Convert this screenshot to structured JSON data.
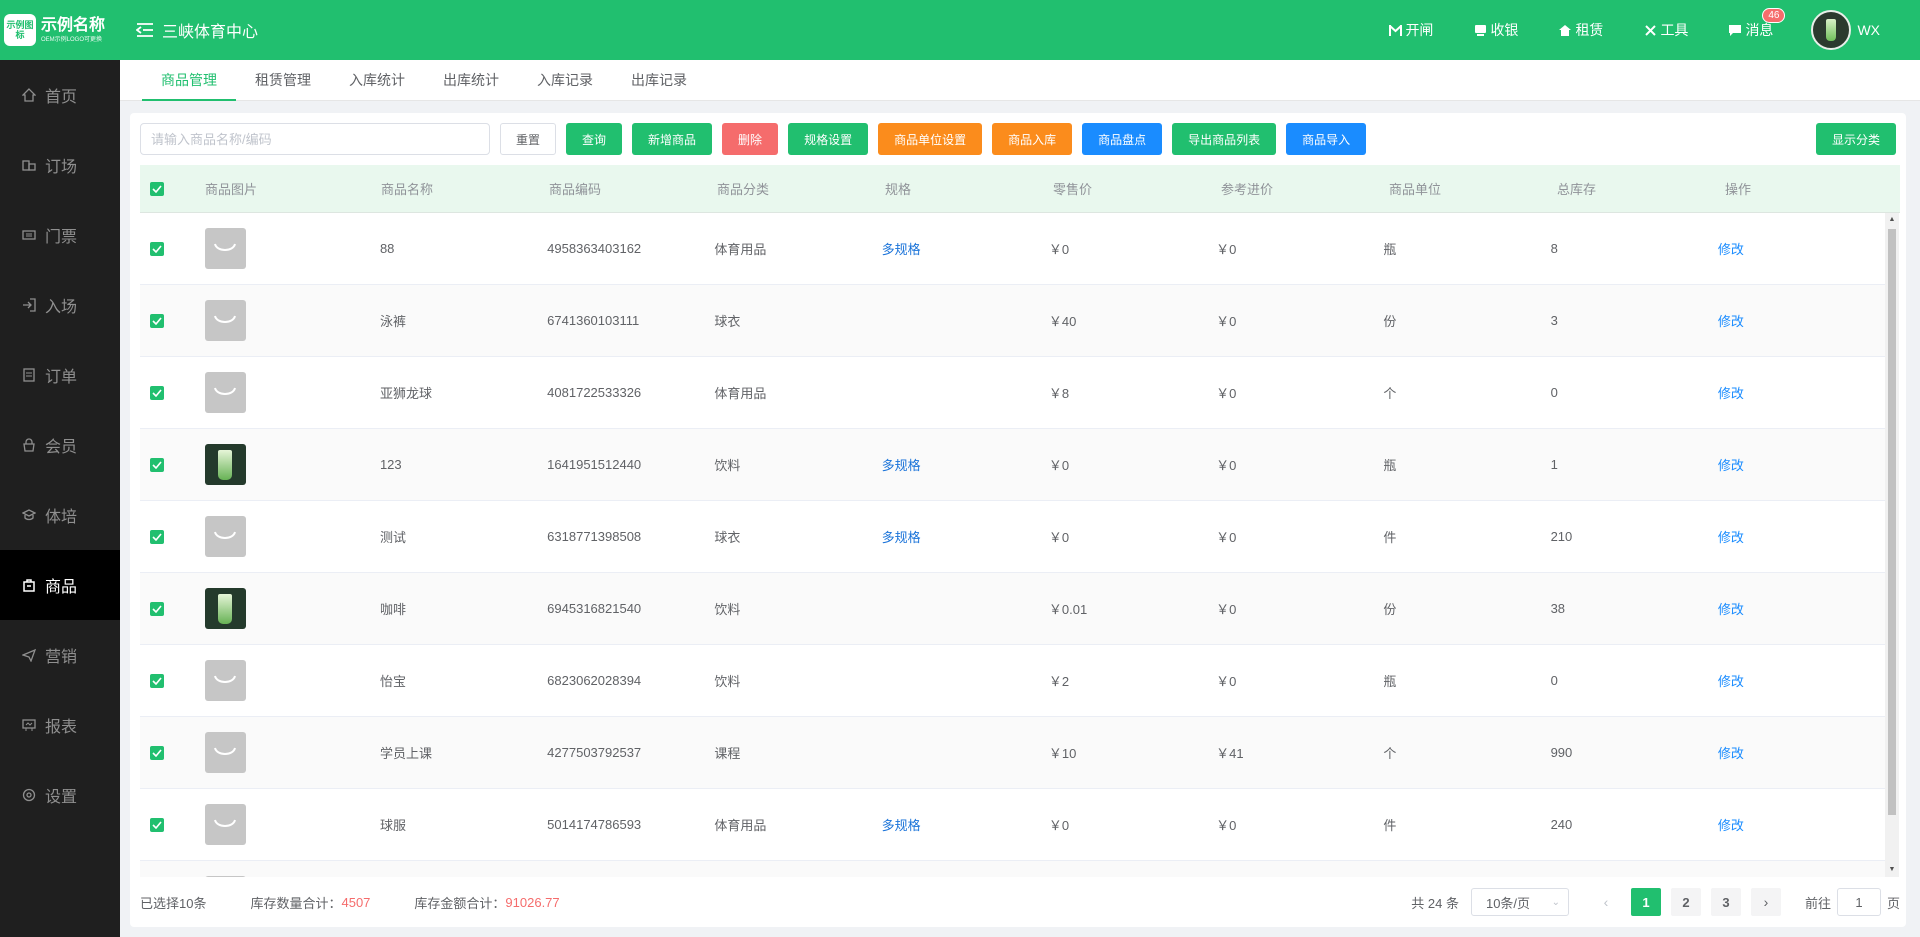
{
  "header": {
    "logo_text": "示例图标",
    "brand_name": "示例名称",
    "brand_sub": "OEM示例LOGO可更换",
    "venue": "三峡体育中心",
    "nav": [
      {
        "label": "开闸",
        "icon": "gate-icon"
      },
      {
        "label": "收银",
        "icon": "cashier-icon"
      },
      {
        "label": "租赁",
        "icon": "home-icon"
      },
      {
        "label": "工具",
        "icon": "tools-icon"
      },
      {
        "label": "消息",
        "icon": "message-icon"
      }
    ],
    "message_badge": "46",
    "user_name": "WX",
    "accent_color": "#21bf6f"
  },
  "sidebar": {
    "items": [
      {
        "label": "首页",
        "icon": "home-icon"
      },
      {
        "label": "订场",
        "icon": "booking-icon"
      },
      {
        "label": "门票",
        "icon": "ticket-icon"
      },
      {
        "label": "入场",
        "icon": "entry-icon"
      },
      {
        "label": "订单",
        "icon": "order-icon"
      },
      {
        "label": "会员",
        "icon": "member-icon"
      },
      {
        "label": "体培",
        "icon": "training-icon"
      },
      {
        "label": "商品",
        "icon": "goods-icon"
      },
      {
        "label": "营销",
        "icon": "marketing-icon"
      },
      {
        "label": "报表",
        "icon": "report-icon"
      },
      {
        "label": "设置",
        "icon": "settings-icon"
      }
    ],
    "active": "商品"
  },
  "tabs": [
    "商品管理",
    "租赁管理",
    "入库统计",
    "出库统计",
    "入库记录",
    "出库记录"
  ],
  "toolbar": {
    "search_placeholder": "请输入商品名称/编码",
    "reset": "重置",
    "query": "查询",
    "add": "新增商品",
    "delete": "删除",
    "spec": "规格设置",
    "unit": "商品单位设置",
    "stock_in": "商品入库",
    "inventory": "商品盘点",
    "export": "导出商品列表",
    "import": "商品导入",
    "show_category": "显示分类"
  },
  "table": {
    "headers": [
      "商品图片",
      "商品名称",
      "商品编码",
      "商品分类",
      "规格",
      "零售价",
      "参考进价",
      "商品单位",
      "总库存",
      "操作"
    ],
    "rows": [
      {
        "img": "placeholder",
        "name": "88",
        "code": "4958363403162",
        "category": "体育用品",
        "spec": "多规格",
        "price": "￥0",
        "cost": "￥0",
        "unit": "瓶",
        "stock": "8",
        "action": "修改"
      },
      {
        "img": "placeholder",
        "name": "泳裤",
        "code": "6741360103111",
        "category": "球衣",
        "spec": "",
        "price": "￥40",
        "cost": "￥0",
        "unit": "份",
        "stock": "3",
        "action": "修改"
      },
      {
        "img": "placeholder",
        "name": "亚狮龙球",
        "code": "4081722533326",
        "category": "体育用品",
        "spec": "",
        "price": "￥8",
        "cost": "￥0",
        "unit": "个",
        "stock": "0",
        "action": "修改"
      },
      {
        "img": "photo",
        "name": "123",
        "code": "1641951512440",
        "category": "饮料",
        "spec": "多规格",
        "price": "￥0",
        "cost": "￥0",
        "unit": "瓶",
        "stock": "1",
        "action": "修改"
      },
      {
        "img": "placeholder",
        "name": "测试",
        "code": "6318771398508",
        "category": "球衣",
        "spec": "多规格",
        "price": "￥0",
        "cost": "￥0",
        "unit": "件",
        "stock": "210",
        "action": "修改"
      },
      {
        "img": "photo",
        "name": "咖啡",
        "code": "6945316821540",
        "category": "饮料",
        "spec": "",
        "price": "￥0.01",
        "cost": "￥0",
        "unit": "份",
        "stock": "38",
        "action": "修改"
      },
      {
        "img": "placeholder",
        "name": "怡宝",
        "code": "6823062028394",
        "category": "饮料",
        "spec": "",
        "price": "￥2",
        "cost": "￥0",
        "unit": "瓶",
        "stock": "0",
        "action": "修改"
      },
      {
        "img": "placeholder",
        "name": "学员上课",
        "code": "4277503792537",
        "category": "课程",
        "spec": "",
        "price": "￥10",
        "cost": "￥41",
        "unit": "个",
        "stock": "990",
        "action": "修改"
      },
      {
        "img": "placeholder",
        "name": "球服",
        "code": "5014174786593",
        "category": "体育用品",
        "spec": "多规格",
        "price": "￥0",
        "cost": "￥0",
        "unit": "件",
        "stock": "240",
        "action": "修改"
      },
      {
        "img": "placeholder",
        "name": "",
        "code": "",
        "category": "",
        "spec": "",
        "price": "",
        "cost": "",
        "unit": "",
        "stock": "",
        "action": ""
      }
    ]
  },
  "footer": {
    "selected": "已选择10条",
    "stock_qty_label": "库存数量合计：",
    "stock_qty": "4507",
    "stock_amount_label": "库存金额合计：",
    "stock_amount": "91026.77",
    "total": "共 24 条",
    "page_size": "10条/页",
    "pages": [
      "1",
      "2",
      "3"
    ],
    "current_page": "1",
    "goto_label": "前往",
    "goto_value": "1",
    "page_unit": "页"
  }
}
